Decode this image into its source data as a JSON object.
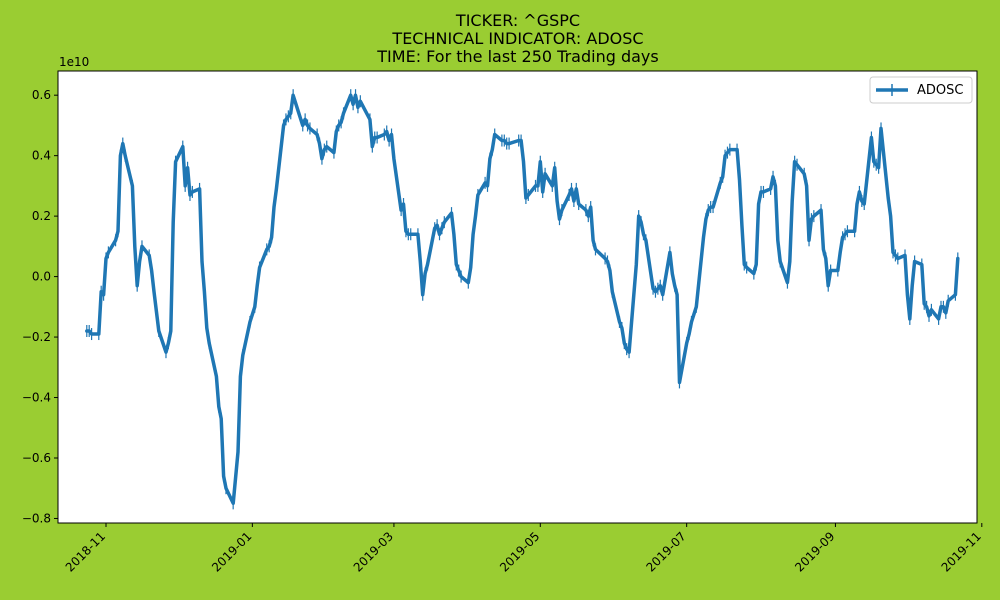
{
  "chart_data": {
    "type": "line",
    "title_lines": [
      "TICKER:  ^GSPC",
      "TECHNICAL INDICATOR:  ADOSC",
      "TIME: For the last 250 Trading days"
    ],
    "xlabel": "",
    "ylabel": "",
    "y_scale_label": "1e10",
    "y_multiplier": 10000000000,
    "xlim": [
      "2018-10-12",
      "2019-10-30"
    ],
    "ylim": [
      -0.815,
      0.68
    ],
    "x_ticks": [
      "2018-11",
      "2019-01",
      "2019-03",
      "2019-05",
      "2019-07",
      "2019-09",
      "2019-11"
    ],
    "y_ticks": [
      -0.8,
      -0.6,
      -0.4,
      -0.2,
      0.0,
      0.2,
      0.4,
      0.6
    ],
    "y_tick_labels": [
      "−0.8",
      "−0.6",
      "−0.4",
      "−0.2",
      "0.0",
      "0.2",
      "0.4",
      "0.6"
    ],
    "legend": "top-right",
    "grid": false,
    "colors": {
      "background": "#9acd32",
      "plot_bg": "#ffffff",
      "line": "#1f77b4"
    },
    "series": [
      {
        "name": "ADOSC",
        "points": [
          [
            "2018-10-24",
            -0.18
          ],
          [
            "2018-10-25",
            -0.18
          ],
          [
            "2018-10-26",
            -0.19
          ],
          [
            "2018-10-29",
            -0.19
          ],
          [
            "2018-10-30",
            -0.05
          ],
          [
            "2018-10-31",
            -0.06
          ],
          [
            "2018-11-01",
            0.06
          ],
          [
            "2018-11-02",
            0.08
          ],
          [
            "2018-11-05",
            0.12
          ],
          [
            "2018-11-06",
            0.15
          ],
          [
            "2018-11-07",
            0.4
          ],
          [
            "2018-11-08",
            0.44
          ],
          [
            "2018-11-09",
            0.4
          ],
          [
            "2018-11-12",
            0.3
          ],
          [
            "2018-11-13",
            0.1
          ],
          [
            "2018-11-14",
            -0.03
          ],
          [
            "2018-11-15",
            0.05
          ],
          [
            "2018-11-16",
            0.1
          ],
          [
            "2018-11-19",
            0.07
          ],
          [
            "2018-11-20",
            0.02
          ],
          [
            "2018-11-21",
            -0.05
          ],
          [
            "2018-11-23",
            -0.18
          ],
          [
            "2018-11-26",
            -0.25
          ],
          [
            "2018-11-27",
            -0.22
          ],
          [
            "2018-11-28",
            -0.18
          ],
          [
            "2018-11-29",
            0.18
          ],
          [
            "2018-11-30",
            0.38
          ],
          [
            "2018-12-03",
            0.43
          ],
          [
            "2018-12-04",
            0.3
          ],
          [
            "2018-12-05",
            0.36
          ],
          [
            "2018-12-06",
            0.27
          ],
          [
            "2018-12-07",
            0.28
          ],
          [
            "2018-12-10",
            0.29
          ],
          [
            "2018-12-11",
            0.05
          ],
          [
            "2018-12-12",
            -0.05
          ],
          [
            "2018-12-13",
            -0.17
          ],
          [
            "2018-12-14",
            -0.22
          ],
          [
            "2018-12-17",
            -0.33
          ],
          [
            "2018-12-18",
            -0.43
          ],
          [
            "2018-12-19",
            -0.47
          ],
          [
            "2018-12-20",
            -0.66
          ],
          [
            "2018-12-21",
            -0.7
          ],
          [
            "2018-12-24",
            -0.75
          ],
          [
            "2018-12-26",
            -0.58
          ],
          [
            "2018-12-27",
            -0.33
          ],
          [
            "2018-12-28",
            -0.26
          ],
          [
            "2018-12-31",
            -0.15
          ],
          [
            "2019-01-02",
            -0.1
          ],
          [
            "2019-01-03",
            -0.03
          ],
          [
            "2019-01-04",
            0.03
          ],
          [
            "2019-01-07",
            0.09
          ],
          [
            "2019-01-08",
            0.1
          ],
          [
            "2019-01-09",
            0.13
          ],
          [
            "2019-01-10",
            0.23
          ],
          [
            "2019-01-11",
            0.29
          ],
          [
            "2019-01-14",
            0.5
          ],
          [
            "2019-01-15",
            0.52
          ],
          [
            "2019-01-16",
            0.53
          ],
          [
            "2019-01-17",
            0.54
          ],
          [
            "2019-01-18",
            0.6
          ],
          [
            "2019-01-22",
            0.5
          ],
          [
            "2019-01-23",
            0.52
          ],
          [
            "2019-01-24",
            0.5
          ],
          [
            "2019-01-25",
            0.49
          ],
          [
            "2019-01-28",
            0.47
          ],
          [
            "2019-01-29",
            0.44
          ],
          [
            "2019-01-30",
            0.39
          ],
          [
            "2019-01-31",
            0.42
          ],
          [
            "2019-02-01",
            0.43
          ],
          [
            "2019-02-04",
            0.41
          ],
          [
            "2019-02-05",
            0.48
          ],
          [
            "2019-02-06",
            0.5
          ],
          [
            "2019-02-07",
            0.51
          ],
          [
            "2019-02-08",
            0.54
          ],
          [
            "2019-02-11",
            0.6
          ],
          [
            "2019-02-12",
            0.57
          ],
          [
            "2019-02-13",
            0.6
          ],
          [
            "2019-02-14",
            0.56
          ],
          [
            "2019-02-15",
            0.58
          ],
          [
            "2019-02-19",
            0.52
          ],
          [
            "2019-02-20",
            0.43
          ],
          [
            "2019-02-21",
            0.46
          ],
          [
            "2019-02-22",
            0.46
          ],
          [
            "2019-02-25",
            0.47
          ],
          [
            "2019-02-26",
            0.48
          ],
          [
            "2019-02-27",
            0.45
          ],
          [
            "2019-02-28",
            0.47
          ],
          [
            "2019-03-01",
            0.39
          ],
          [
            "2019-03-04",
            0.22
          ],
          [
            "2019-03-05",
            0.24
          ],
          [
            "2019-03-06",
            0.15
          ],
          [
            "2019-03-07",
            0.14
          ],
          [
            "2019-03-08",
            0.14
          ],
          [
            "2019-03-11",
            0.14
          ],
          [
            "2019-03-12",
            0.05
          ],
          [
            "2019-03-13",
            -0.06
          ],
          [
            "2019-03-14",
            0.01
          ],
          [
            "2019-03-15",
            0.04
          ],
          [
            "2019-03-18",
            0.16
          ],
          [
            "2019-03-19",
            0.17
          ],
          [
            "2019-03-20",
            0.14
          ],
          [
            "2019-03-21",
            0.16
          ],
          [
            "2019-03-22",
            0.18
          ],
          [
            "2019-03-25",
            0.21
          ],
          [
            "2019-03-26",
            0.14
          ],
          [
            "2019-03-27",
            0.04
          ],
          [
            "2019-03-28",
            0.02
          ],
          [
            "2019-03-29",
            0.0
          ],
          [
            "2019-04-01",
            -0.02
          ],
          [
            "2019-04-02",
            0.03
          ],
          [
            "2019-04-03",
            0.14
          ],
          [
            "2019-04-04",
            0.2
          ],
          [
            "2019-04-05",
            0.27
          ],
          [
            "2019-04-08",
            0.31
          ],
          [
            "2019-04-09",
            0.3
          ],
          [
            "2019-04-10",
            0.39
          ],
          [
            "2019-04-11",
            0.42
          ],
          [
            "2019-04-12",
            0.47
          ],
          [
            "2019-04-15",
            0.45
          ],
          [
            "2019-04-16",
            0.45
          ],
          [
            "2019-04-17",
            0.44
          ],
          [
            "2019-04-18",
            0.44
          ],
          [
            "2019-04-22",
            0.45
          ],
          [
            "2019-04-23",
            0.45
          ],
          [
            "2019-04-24",
            0.38
          ],
          [
            "2019-04-25",
            0.26
          ],
          [
            "2019-04-26",
            0.27
          ],
          [
            "2019-04-29",
            0.3
          ],
          [
            "2019-04-30",
            0.3
          ],
          [
            "2019-05-01",
            0.38
          ],
          [
            "2019-05-02",
            0.28
          ],
          [
            "2019-05-03",
            0.34
          ],
          [
            "2019-05-06",
            0.3
          ],
          [
            "2019-05-07",
            0.36
          ],
          [
            "2019-05-08",
            0.25
          ],
          [
            "2019-05-09",
            0.19
          ],
          [
            "2019-05-10",
            0.22
          ],
          [
            "2019-05-13",
            0.27
          ],
          [
            "2019-05-14",
            0.29
          ],
          [
            "2019-05-15",
            0.25
          ],
          [
            "2019-05-16",
            0.29
          ],
          [
            "2019-05-17",
            0.24
          ],
          [
            "2019-05-20",
            0.22
          ],
          [
            "2019-05-21",
            0.2
          ],
          [
            "2019-05-22",
            0.23
          ],
          [
            "2019-05-23",
            0.12
          ],
          [
            "2019-05-24",
            0.09
          ],
          [
            "2019-05-28",
            0.06
          ],
          [
            "2019-05-29",
            0.05
          ],
          [
            "2019-05-30",
            0.02
          ],
          [
            "2019-05-31",
            -0.05
          ],
          [
            "2019-06-03",
            -0.15
          ],
          [
            "2019-06-04",
            -0.17
          ],
          [
            "2019-06-05",
            -0.22
          ],
          [
            "2019-06-06",
            -0.24
          ],
          [
            "2019-06-07",
            -0.25
          ],
          [
            "2019-06-10",
            0.04
          ],
          [
            "2019-06-11",
            0.2
          ],
          [
            "2019-06-12",
            0.18
          ],
          [
            "2019-06-13",
            0.14
          ],
          [
            "2019-06-14",
            0.12
          ],
          [
            "2019-06-17",
            -0.04
          ],
          [
            "2019-06-18",
            -0.05
          ],
          [
            "2019-06-19",
            -0.04
          ],
          [
            "2019-06-20",
            -0.03
          ],
          [
            "2019-06-21",
            -0.06
          ],
          [
            "2019-06-24",
            0.08
          ],
          [
            "2019-06-25",
            0.01
          ],
          [
            "2019-06-26",
            -0.03
          ],
          [
            "2019-06-27",
            -0.06
          ],
          [
            "2019-06-28",
            -0.35
          ],
          [
            "2019-07-01",
            -0.22
          ],
          [
            "2019-07-02",
            -0.19
          ],
          [
            "2019-07-03",
            -0.15
          ],
          [
            "2019-07-05",
            -0.1
          ],
          [
            "2019-07-08",
            0.13
          ],
          [
            "2019-07-09",
            0.19
          ],
          [
            "2019-07-10",
            0.22
          ],
          [
            "2019-07-11",
            0.23
          ],
          [
            "2019-07-12",
            0.23
          ],
          [
            "2019-07-15",
            0.31
          ],
          [
            "2019-07-16",
            0.33
          ],
          [
            "2019-07-17",
            0.4
          ],
          [
            "2019-07-18",
            0.41
          ],
          [
            "2019-07-19",
            0.42
          ],
          [
            "2019-07-22",
            0.42
          ],
          [
            "2019-07-23",
            0.32
          ],
          [
            "2019-07-24",
            0.17
          ],
          [
            "2019-07-25",
            0.04
          ],
          [
            "2019-07-26",
            0.03
          ],
          [
            "2019-07-29",
            0.01
          ],
          [
            "2019-07-30",
            0.04
          ],
          [
            "2019-07-31",
            0.24
          ],
          [
            "2019-08-01",
            0.28
          ],
          [
            "2019-08-02",
            0.28
          ],
          [
            "2019-08-05",
            0.29
          ],
          [
            "2019-08-06",
            0.33
          ],
          [
            "2019-08-07",
            0.3
          ],
          [
            "2019-08-08",
            0.12
          ],
          [
            "2019-08-09",
            0.05
          ],
          [
            "2019-08-12",
            -0.02
          ],
          [
            "2019-08-13",
            0.05
          ],
          [
            "2019-08-14",
            0.25
          ],
          [
            "2019-08-15",
            0.38
          ],
          [
            "2019-08-16",
            0.37
          ],
          [
            "2019-08-19",
            0.34
          ],
          [
            "2019-08-20",
            0.3
          ],
          [
            "2019-08-21",
            0.12
          ],
          [
            "2019-08-22",
            0.19
          ],
          [
            "2019-08-23",
            0.2
          ],
          [
            "2019-08-26",
            0.22
          ],
          [
            "2019-08-27",
            0.09
          ],
          [
            "2019-08-28",
            0.06
          ],
          [
            "2019-08-29",
            -0.03
          ],
          [
            "2019-08-30",
            0.02
          ],
          [
            "2019-09-02",
            0.02
          ],
          [
            "2019-09-03",
            0.08
          ],
          [
            "2019-09-04",
            0.13
          ],
          [
            "2019-09-05",
            0.14
          ],
          [
            "2019-09-06",
            0.15
          ],
          [
            "2019-09-09",
            0.15
          ],
          [
            "2019-09-10",
            0.24
          ],
          [
            "2019-09-11",
            0.28
          ],
          [
            "2019-09-12",
            0.25
          ],
          [
            "2019-09-13",
            0.24
          ],
          [
            "2019-09-16",
            0.46
          ],
          [
            "2019-09-17",
            0.38
          ],
          [
            "2019-09-18",
            0.37
          ],
          [
            "2019-09-19",
            0.36
          ],
          [
            "2019-09-20",
            0.49
          ],
          [
            "2019-09-23",
            0.26
          ],
          [
            "2019-09-24",
            0.2
          ],
          [
            "2019-09-25",
            0.08
          ],
          [
            "2019-09-26",
            0.07
          ],
          [
            "2019-09-27",
            0.06
          ],
          [
            "2019-09-30",
            0.07
          ],
          [
            "2019-10-01",
            -0.06
          ],
          [
            "2019-10-02",
            -0.14
          ],
          [
            "2019-10-03",
            -0.03
          ],
          [
            "2019-10-04",
            0.05
          ],
          [
            "2019-10-07",
            0.04
          ],
          [
            "2019-10-08",
            -0.09
          ],
          [
            "2019-10-09",
            -0.1
          ],
          [
            "2019-10-10",
            -0.13
          ],
          [
            "2019-10-11",
            -0.11
          ],
          [
            "2019-10-14",
            -0.14
          ],
          [
            "2019-10-15",
            -0.1
          ],
          [
            "2019-10-16",
            -0.1
          ],
          [
            "2019-10-17",
            -0.12
          ],
          [
            "2019-10-18",
            -0.08
          ],
          [
            "2019-10-21",
            -0.06
          ],
          [
            "2019-10-22",
            0.06
          ]
        ]
      }
    ]
  }
}
